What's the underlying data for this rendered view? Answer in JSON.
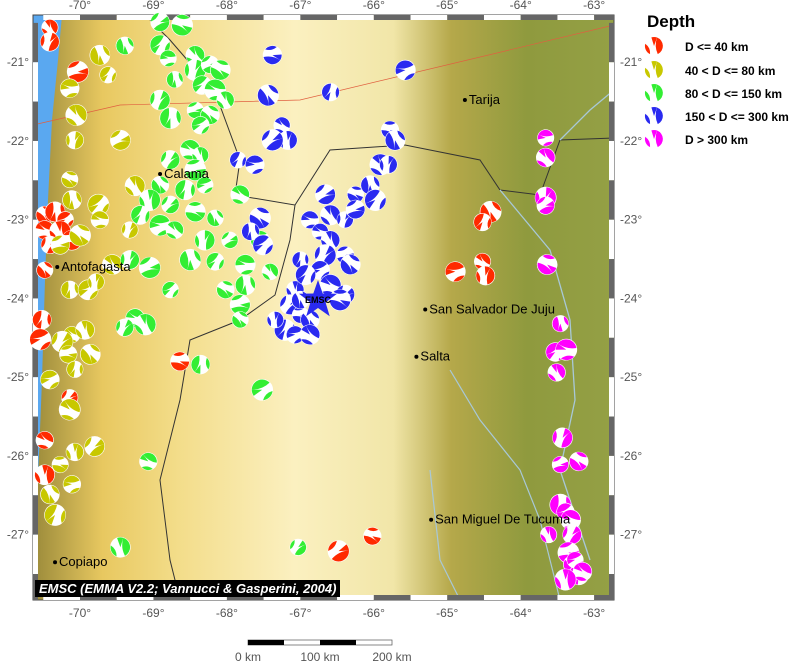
{
  "map": {
    "lon_range": [
      -70.64,
      -62.73
    ],
    "lat_range": [
      -27.83,
      -20.4
    ],
    "lon_ticks": [
      "-70°",
      "-69°",
      "-68°",
      "-67°",
      "-66°",
      "-65°",
      "-64°",
      "-63°"
    ],
    "lon_tick_values": [
      -70,
      -69,
      -68,
      -67,
      -66,
      -65,
      -64,
      -63
    ],
    "lat_ticks": [
      "-21°",
      "-22°",
      "-23°",
      "-24°",
      "-25°",
      "-26°",
      "-27°"
    ],
    "lat_tick_values": [
      -21,
      -22,
      -23,
      -24,
      -25,
      -26,
      -27
    ],
    "credit": "EMSC (EMMA V2.2; Vannucci & Gasperini, 2004)",
    "epicenter": {
      "label": "EMSC",
      "lon": -66.76,
      "lat": -24.02,
      "icon": "star-icon",
      "color": "#2a2af0"
    },
    "cities": [
      {
        "name": "Tarija",
        "lon": -64.76,
        "lat": -21.48
      },
      {
        "name": "Calama",
        "lon": -68.91,
        "lat": -22.42
      },
      {
        "name": "Antofagasta",
        "lon": -70.31,
        "lat": -23.6
      },
      {
        "name": "San Salvador De Juju",
        "lon": -65.3,
        "lat": -24.14
      },
      {
        "name": "Salta",
        "lon": -65.42,
        "lat": -24.74
      },
      {
        "name": "San Miguel De Tucuma",
        "lon": -65.22,
        "lat": -26.81
      },
      {
        "name": "Copiapo",
        "lon": -70.34,
        "lat": -27.35
      }
    ],
    "scale_bar": {
      "labels": [
        "0 km",
        "100 km",
        "200 km"
      ]
    }
  },
  "legend": {
    "title": "Depth",
    "items": [
      {
        "label": "D <= 40 km",
        "color": "#ff2a00"
      },
      {
        "label": "40 < D <= 80 km",
        "color": "#c8c800"
      },
      {
        "label": "80 < D <= 150 km",
        "color": "#33ee33"
      },
      {
        "label": "150 < D <= 300 km",
        "color": "#2a2af0"
      },
      {
        "label": "D > 300 km",
        "color": "#ff00ff"
      }
    ]
  },
  "events": [
    [
      -70.41,
      -20.56,
      0
    ],
    [
      -70.41,
      -20.74,
      0
    ],
    [
      -70.03,
      -21.12,
      0
    ],
    [
      -70.48,
      -22.94,
      0
    ],
    [
      -70.34,
      -22.9,
      0
    ],
    [
      -70.2,
      -23.0,
      0
    ],
    [
      -70.48,
      -23.13,
      0
    ],
    [
      -70.27,
      -23.15,
      0
    ],
    [
      -70.41,
      -23.32,
      0
    ],
    [
      -70.11,
      -23.26,
      0
    ],
    [
      -70.48,
      -23.64,
      0
    ],
    [
      -70.52,
      -24.27,
      0
    ],
    [
      -70.54,
      -24.52,
      0
    ],
    [
      -70.48,
      -25.8,
      0
    ],
    [
      -70.48,
      -26.24,
      0
    ],
    [
      -70.14,
      -25.26,
      0
    ],
    [
      -68.64,
      -24.8,
      0
    ],
    [
      -64.41,
      -22.9,
      0
    ],
    [
      -64.52,
      -23.03,
      0
    ],
    [
      -64.89,
      -23.66,
      0
    ],
    [
      -64.52,
      -23.53,
      0
    ],
    [
      -64.48,
      -23.71,
      0
    ],
    [
      -66.48,
      -27.21,
      0
    ],
    [
      -66.02,
      -27.02,
      0
    ],
    [
      -69.73,
      -20.91,
      1
    ],
    [
      -69.62,
      -21.16,
      1
    ],
    [
      -70.14,
      -21.33,
      1
    ],
    [
      -70.05,
      -21.67,
      1
    ],
    [
      -70.07,
      -21.99,
      1
    ],
    [
      -69.45,
      -21.99,
      1
    ],
    [
      -70.14,
      -22.49,
      1
    ],
    [
      -70.11,
      -22.75,
      1
    ],
    [
      -69.75,
      -22.81,
      1
    ],
    [
      -69.73,
      -23.0,
      1
    ],
    [
      -69.25,
      -22.57,
      1
    ],
    [
      -69.32,
      -23.13,
      1
    ],
    [
      -70.27,
      -23.32,
      1
    ],
    [
      -70.0,
      -23.2,
      1
    ],
    [
      -70.14,
      -23.89,
      1
    ],
    [
      -69.89,
      -23.89,
      1
    ],
    [
      -70.11,
      -24.46,
      1
    ],
    [
      -69.93,
      -24.4,
      1
    ],
    [
      -70.24,
      -24.55,
      1
    ],
    [
      -70.16,
      -24.71,
      1
    ],
    [
      -69.86,
      -24.71,
      1
    ],
    [
      -70.07,
      -24.9,
      1
    ],
    [
      -70.41,
      -25.03,
      1
    ],
    [
      -70.14,
      -25.41,
      1
    ],
    [
      -70.07,
      -25.95,
      1
    ],
    [
      -69.8,
      -25.88,
      1
    ],
    [
      -70.27,
      -26.11,
      1
    ],
    [
      -70.41,
      -26.49,
      1
    ],
    [
      -70.34,
      -26.75,
      1
    ],
    [
      -70.11,
      -26.36,
      1
    ],
    [
      -69.56,
      -23.57,
      1
    ],
    [
      -69.78,
      -23.79,
      1
    ],
    [
      -68.91,
      -20.49,
      2
    ],
    [
      -68.61,
      -20.53,
      2
    ],
    [
      -69.39,
      -20.79,
      2
    ],
    [
      -68.91,
      -20.78,
      2
    ],
    [
      -68.8,
      -20.95,
      2
    ],
    [
      -68.43,
      -20.91,
      2
    ],
    [
      -68.43,
      -21.1,
      2
    ],
    [
      -68.23,
      -21.03,
      2
    ],
    [
      -68.09,
      -21.1,
      2
    ],
    [
      -68.71,
      -21.22,
      2
    ],
    [
      -68.34,
      -21.29,
      2
    ],
    [
      -68.16,
      -21.35,
      2
    ],
    [
      -68.02,
      -21.48,
      2
    ],
    [
      -68.91,
      -21.48,
      2
    ],
    [
      -68.43,
      -21.61,
      2
    ],
    [
      -68.23,
      -21.67,
      2
    ],
    [
      -68.77,
      -21.71,
      2
    ],
    [
      -68.36,
      -21.8,
      2
    ],
    [
      -68.5,
      -22.11,
      2
    ],
    [
      -68.36,
      -22.18,
      2
    ],
    [
      -68.77,
      -22.24,
      2
    ],
    [
      -68.43,
      -22.37,
      2
    ],
    [
      -68.91,
      -22.56,
      2
    ],
    [
      -68.57,
      -22.62,
      2
    ],
    [
      -68.3,
      -22.56,
      2
    ],
    [
      -67.82,
      -22.68,
      2
    ],
    [
      -69.05,
      -22.75,
      2
    ],
    [
      -68.77,
      -22.81,
      2
    ],
    [
      -68.43,
      -22.9,
      2
    ],
    [
      -68.16,
      -22.98,
      2
    ],
    [
      -69.18,
      -22.94,
      2
    ],
    [
      -68.91,
      -23.07,
      2
    ],
    [
      -68.71,
      -23.13,
      2
    ],
    [
      -68.3,
      -23.26,
      2
    ],
    [
      -67.96,
      -23.26,
      2
    ],
    [
      -67.55,
      -23.26,
      2
    ],
    [
      -68.5,
      -23.51,
      2
    ],
    [
      -68.16,
      -23.53,
      2
    ],
    [
      -67.75,
      -23.57,
      2
    ],
    [
      -67.41,
      -23.66,
      2
    ],
    [
      -69.32,
      -23.51,
      2
    ],
    [
      -69.05,
      -23.61,
      2
    ],
    [
      -68.02,
      -23.89,
      2
    ],
    [
      -67.75,
      -23.83,
      2
    ],
    [
      -68.77,
      -23.89,
      2
    ],
    [
      -69.25,
      -24.25,
      2
    ],
    [
      -69.11,
      -24.33,
      2
    ],
    [
      -69.39,
      -24.37,
      2
    ],
    [
      -67.82,
      -24.08,
      2
    ],
    [
      -67.82,
      -24.27,
      2
    ],
    [
      -68.36,
      -24.84,
      2
    ],
    [
      -67.52,
      -25.16,
      2
    ],
    [
      -69.07,
      -26.07,
      2
    ],
    [
      -69.45,
      -27.16,
      2
    ],
    [
      -67.03,
      -27.16,
      2
    ],
    [
      -67.38,
      -20.91,
      3
    ],
    [
      -67.44,
      -21.42,
      3
    ],
    [
      -66.59,
      -21.38,
      3
    ],
    [
      -65.57,
      -21.1,
      3
    ],
    [
      -67.25,
      -21.8,
      3
    ],
    [
      -67.17,
      -21.99,
      3
    ],
    [
      -67.38,
      -21.99,
      3
    ],
    [
      -65.78,
      -21.86,
      3
    ],
    [
      -65.71,
      -21.99,
      3
    ],
    [
      -67.85,
      -22.24,
      3
    ],
    [
      -67.62,
      -22.3,
      3
    ],
    [
      -65.91,
      -22.3,
      3
    ],
    [
      -65.8,
      -22.3,
      3
    ],
    [
      -66.66,
      -22.68,
      3
    ],
    [
      -66.25,
      -22.68,
      3
    ],
    [
      -66.05,
      -22.56,
      3
    ],
    [
      -65.98,
      -22.75,
      3
    ],
    [
      -66.87,
      -23.0,
      3
    ],
    [
      -66.59,
      -22.94,
      3
    ],
    [
      -66.39,
      -23.0,
      3
    ],
    [
      -66.25,
      -22.87,
      3
    ],
    [
      -67.55,
      -22.98,
      3
    ],
    [
      -67.68,
      -23.15,
      3
    ],
    [
      -67.51,
      -23.32,
      3
    ],
    [
      -66.73,
      -23.15,
      3
    ],
    [
      -66.59,
      -23.26,
      3
    ],
    [
      -66.66,
      -23.45,
      3
    ],
    [
      -66.39,
      -23.45,
      3
    ],
    [
      -66.32,
      -23.57,
      3
    ],
    [
      -67.0,
      -23.51,
      3
    ],
    [
      -66.73,
      -23.64,
      3
    ],
    [
      -66.59,
      -23.83,
      3
    ],
    [
      -67.07,
      -23.89,
      3
    ],
    [
      -67.14,
      -24.08,
      3
    ],
    [
      -67.0,
      -24.21,
      3
    ],
    [
      -66.87,
      -24.27,
      3
    ],
    [
      -67.21,
      -24.4,
      3
    ],
    [
      -67.07,
      -24.46,
      3
    ],
    [
      -66.87,
      -24.46,
      3
    ],
    [
      -67.34,
      -24.27,
      3
    ],
    [
      -66.39,
      -23.95,
      3
    ],
    [
      -66.46,
      -24.02,
      3
    ],
    [
      -67.0,
      -24.02,
      3
    ],
    [
      -66.93,
      -23.7,
      3
    ],
    [
      -63.66,
      -21.96,
      4
    ],
    [
      -63.66,
      -22.21,
      4
    ],
    [
      -63.66,
      -22.72,
      4
    ],
    [
      -63.66,
      -22.82,
      4
    ],
    [
      -63.64,
      -23.57,
      4
    ],
    [
      -63.46,
      -24.32,
      4
    ],
    [
      -63.53,
      -24.68,
      4
    ],
    [
      -63.38,
      -24.65,
      4
    ],
    [
      -63.51,
      -24.94,
      4
    ],
    [
      -63.43,
      -25.77,
      4
    ],
    [
      -63.46,
      -26.11,
      4
    ],
    [
      -63.21,
      -26.07,
      4
    ],
    [
      -63.46,
      -26.62,
      4
    ],
    [
      -63.39,
      -26.71,
      4
    ],
    [
      -63.32,
      -26.81,
      4
    ],
    [
      -63.62,
      -27.0,
      4
    ],
    [
      -63.3,
      -27.0,
      4
    ],
    [
      -63.35,
      -27.23,
      4
    ],
    [
      -63.3,
      -27.38,
      4
    ],
    [
      -63.21,
      -27.51,
      4
    ],
    [
      -63.26,
      -27.32,
      4
    ],
    [
      -63.16,
      -27.47,
      4
    ],
    [
      -63.39,
      -27.57,
      4
    ]
  ]
}
